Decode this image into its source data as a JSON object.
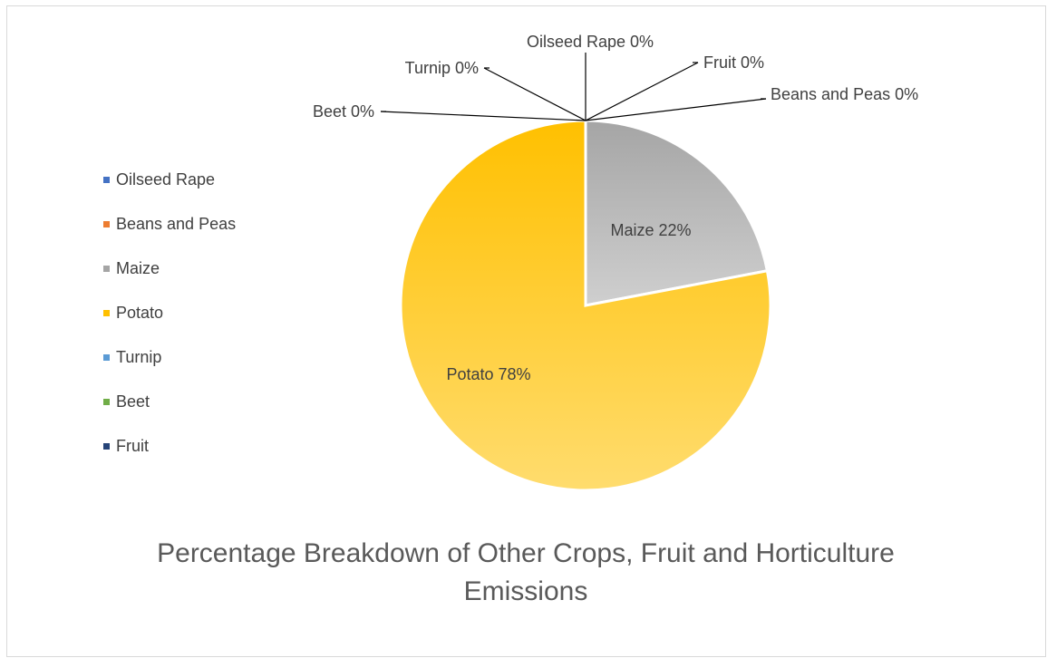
{
  "chart_data": {
    "type": "pie",
    "title": "Percentage Breakdown of Other Crops, Fruit and Horticulture Emissions",
    "legend_position": "left",
    "slices": [
      {
        "name": "Oilseed Rape",
        "value": 0,
        "label": "Oilseed Rape 0%",
        "color": "#4472c4"
      },
      {
        "name": "Beans and Peas",
        "value": 0,
        "label": "Beans and Peas 0%",
        "color": "#ed7d31"
      },
      {
        "name": "Maize",
        "value": 22,
        "label": "Maize 22%",
        "color": "#a5a5a5"
      },
      {
        "name": "Potato",
        "value": 78,
        "label": "Potato 78%",
        "color": "#ffc000"
      },
      {
        "name": "Turnip",
        "value": 0,
        "label": "Turnip 0%",
        "color": "#5b9bd5"
      },
      {
        "name": "Beet",
        "value": 0,
        "label": "Beet 0%",
        "color": "#70ad47"
      },
      {
        "name": "Fruit",
        "value": 0,
        "label": "Fruit 0%",
        "color": "#264478"
      }
    ]
  }
}
